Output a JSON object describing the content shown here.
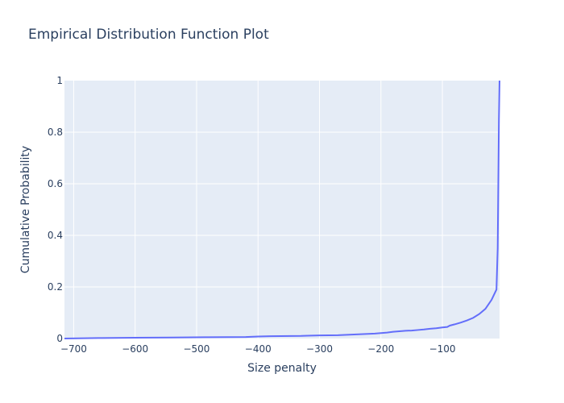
{
  "chart_data": {
    "type": "line",
    "title": "Empirical Distribution Function Plot",
    "xlabel": "Size penalty",
    "ylabel": "Cumulative Probability",
    "xlim": [
      -715,
      -7
    ],
    "ylim": [
      0,
      1
    ],
    "x_ticks": [
      -700,
      -600,
      -500,
      -400,
      -300,
      -200,
      -100
    ],
    "x_tick_labels": [
      "−700",
      "−600",
      "−500",
      "−400",
      "−300",
      "−200",
      "−100"
    ],
    "y_ticks": [
      0,
      0.2,
      0.4,
      0.6,
      0.8,
      1
    ],
    "y_tick_labels": [
      "0",
      "0.2",
      "0.4",
      "0.6",
      "0.8",
      "1"
    ],
    "grid": true,
    "colors": {
      "plot_background": "#e5ecf6",
      "grid": "#ffffff",
      "line": "#636efa",
      "text": "#2a3f5f"
    },
    "series": [
      {
        "x": [
          -715,
          -660,
          -600,
          -540,
          -480,
          -420,
          -400,
          -380,
          -330,
          -320,
          -300,
          -270,
          -240,
          -210,
          -200,
          -190,
          -180,
          -170,
          -160,
          -150,
          -140,
          -130,
          -120,
          -110,
          -100,
          -92,
          -88,
          -80,
          -70,
          -60,
          -50,
          -40,
          -30,
          -20,
          -12,
          -10,
          -9,
          -8,
          -7
        ],
        "y": [
          0.0,
          0.002,
          0.003,
          0.004,
          0.005,
          0.006,
          0.008,
          0.009,
          0.01,
          0.011,
          0.012,
          0.013,
          0.016,
          0.019,
          0.021,
          0.023,
          0.026,
          0.028,
          0.03,
          0.031,
          0.033,
          0.035,
          0.038,
          0.04,
          0.043,
          0.045,
          0.05,
          0.055,
          0.062,
          0.07,
          0.08,
          0.095,
          0.115,
          0.15,
          0.19,
          0.35,
          0.6,
          0.85,
          1.0
        ]
      }
    ]
  }
}
